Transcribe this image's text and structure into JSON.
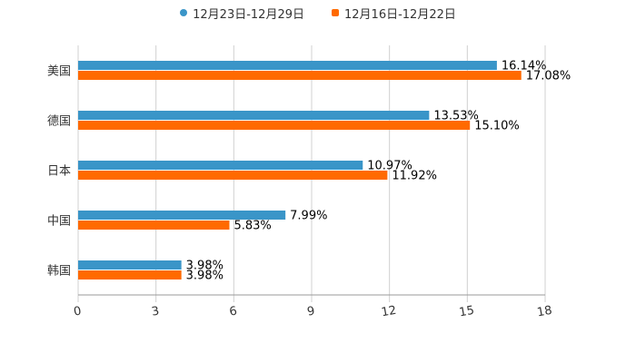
{
  "chart_data": {
    "type": "bar",
    "orientation": "horizontal",
    "title": "",
    "xlabel": "",
    "ylabel": "",
    "categories": [
      "美国",
      "德国",
      "日本",
      "中国",
      "韩国"
    ],
    "series": [
      {
        "name": "12月23日-12月29日",
        "color": "#3a95c8",
        "values": [
          16.14,
          13.53,
          10.97,
          7.99,
          3.98
        ],
        "labels": [
          "16.14%",
          "13.53%",
          "10.97%",
          "7.99%",
          "3.98%"
        ]
      },
      {
        "name": "12月16日-12月22日",
        "color": "#ff6a00",
        "values": [
          17.08,
          15.1,
          11.92,
          5.83,
          3.98
        ],
        "labels": [
          "17.08%",
          "15.10%",
          "11.92%",
          "5.83%",
          "3.98%"
        ]
      }
    ],
    "xlim": [
      0,
      18
    ],
    "xticks": [
      "0",
      "3",
      "6",
      "9",
      "12",
      "15",
      "18"
    ],
    "grid": true,
    "legend_position": "top-center"
  }
}
